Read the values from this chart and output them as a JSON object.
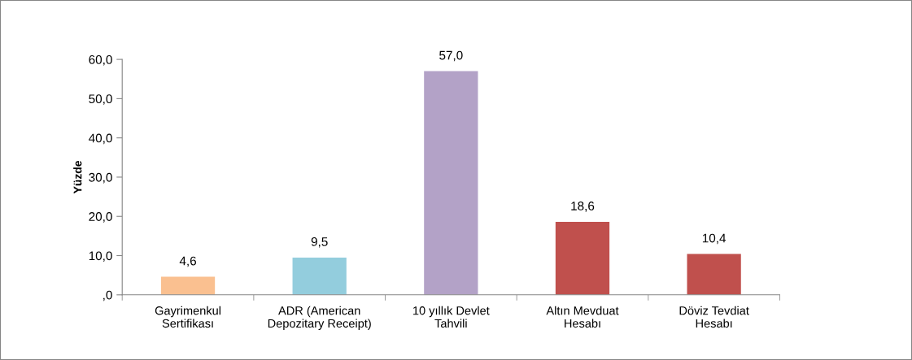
{
  "chart_data": {
    "type": "bar",
    "ylabel": "Yüzde",
    "categories": [
      "Gayrimenkul\nSertifikası",
      "ADR (American\nDepozitary Receipt)",
      "10 yıllık Devlet\nTahvili",
      "Altın Mevduat\nHesabı",
      "Döviz Tevdiat\nHesabı"
    ],
    "values": [
      4.6,
      9.5,
      57.0,
      18.6,
      10.4
    ],
    "colors": [
      "#fac090",
      "#93cddd",
      "#b3a2c7",
      "#c0504d",
      "#c0504d"
    ],
    "value_labels": [
      "4,6",
      "9,5",
      "57,0",
      "18,6",
      "10,4"
    ],
    "ylim": [
      0,
      60
    ],
    "yticks": [
      {
        "value": 0,
        "label": ",0"
      },
      {
        "value": 10,
        "label": "10,0"
      },
      {
        "value": 20,
        "label": "20,0"
      },
      {
        "value": 30,
        "label": "30,0"
      },
      {
        "value": 40,
        "label": "40,0"
      },
      {
        "value": 50,
        "label": "50,0"
      },
      {
        "value": 60,
        "label": "60,0"
      }
    ],
    "grid": false,
    "legend": false
  }
}
